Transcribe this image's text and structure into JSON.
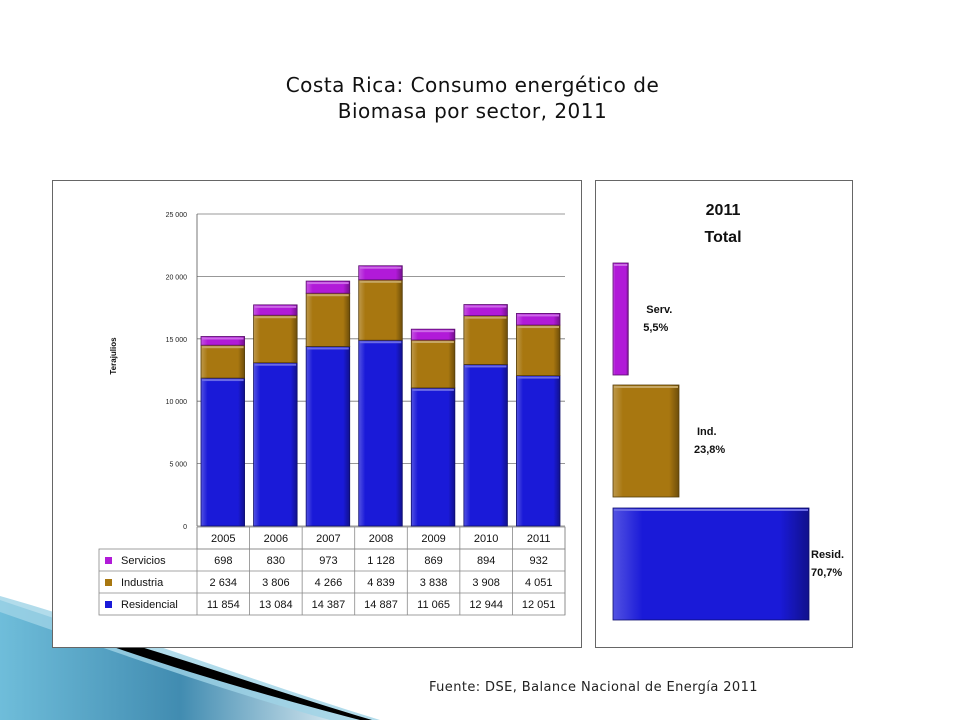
{
  "title_line1": "Costa Rica: Consumo energético de",
  "title_line2": "Biomasa por sector, 2011",
  "source": "Fuente: DSE, Balance Nacional de Energía 2011",
  "colors": {
    "residencial": "#1a1ad8",
    "industria": "#a87710",
    "servicios": "#b11ad8"
  },
  "chart_data": [
    {
      "type": "bar",
      "stacked": true,
      "ylabel": "Terajulios",
      "ylim": [
        0,
        25000
      ],
      "yticks": [
        0,
        5000,
        10000,
        15000,
        20000,
        25000
      ],
      "ytick_labels": [
        "0",
        "5 000",
        "10 000",
        "15 000",
        "20 000",
        "25 000"
      ],
      "grid": true,
      "categories": [
        "2005",
        "2006",
        "2007",
        "2008",
        "2009",
        "2010",
        "2011"
      ],
      "series": [
        {
          "name": "Residencial",
          "color_key": "residencial",
          "values": [
            11854,
            13084,
            14387,
            14887,
            11065,
            12944,
            12051
          ],
          "labels": [
            "11 854",
            "13 084",
            "14 387",
            "14 887",
            "11 065",
            "12 944",
            "12 051"
          ]
        },
        {
          "name": "Industria",
          "color_key": "industria",
          "values": [
            2634,
            3806,
            4266,
            4839,
            3838,
            3908,
            4051
          ],
          "labels": [
            "2 634",
            "3 806",
            "4 266",
            "4 839",
            "3 838",
            "3 908",
            "4 051"
          ]
        },
        {
          "name": "Servicios",
          "color_key": "servicios",
          "values": [
            698,
            830,
            973,
            1128,
            869,
            894,
            932
          ],
          "labels": [
            "698",
            "830",
            "973",
            "1 128",
            "869",
            "894",
            "932"
          ]
        }
      ],
      "table_rows_order": [
        "Servicios",
        "Industria",
        "Residencial"
      ]
    },
    {
      "type": "bar",
      "title": "2011",
      "subtitle": "Total",
      "shares": [
        {
          "name": "Serv.",
          "pct": 5.5,
          "pct_label": "5,5%",
          "color_key": "servicios"
        },
        {
          "name": "Ind.",
          "pct": 23.8,
          "pct_label": "23,8%",
          "color_key": "industria"
        },
        {
          "name": "Resid.",
          "pct": 70.7,
          "pct_label": "70,7%",
          "color_key": "residencial"
        }
      ]
    }
  ]
}
